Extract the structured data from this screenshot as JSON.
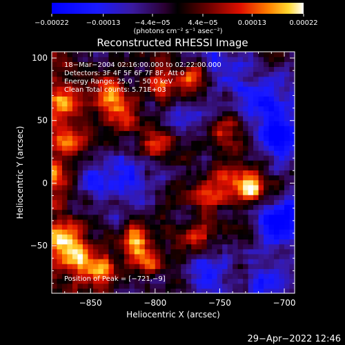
{
  "chart_data": {
    "type": "heatmap",
    "title": "Reconstructed RHESSI Image",
    "xlabel": "Heliocentric X (arcsec)",
    "ylabel": "Heliocentric Y (arcsec)",
    "xlim": [
      -880,
      -692
    ],
    "ylim": [
      -88,
      105
    ],
    "xticks": [
      -850,
      -800,
      -750,
      -700
    ],
    "yticks": [
      -50,
      0,
      50,
      100
    ],
    "xtick_labels": [
      "−850",
      "−800",
      "−750",
      "−700"
    ],
    "ytick_labels": [
      "−50",
      "0",
      "50",
      "100"
    ],
    "colorbar": {
      "range": [
        -0.00022,
        0.00022
      ],
      "ticks": [
        -0.00022,
        -0.00013,
        -4.4e-05,
        4.4e-05,
        0.00013,
        0.00022
      ],
      "tick_labels": [
        "−0.00022",
        "−0.00013",
        "−4.4e−05",
        "4.4e−05",
        "0.00013",
        "0.00022"
      ],
      "units": "(photons cm⁻² s⁻¹ asec⁻²)"
    },
    "info_lines": [
      "18−Mar−2004 02:16:00.000 to 02:22:00.000",
      "Detectors: 3F 4F 5F 6F 7F 8F, Att 0",
      "Energy Range: 25.0 − 50.0 keV",
      "Clean     Total counts: 5.71E+03"
    ],
    "peak_label": "Position of Peak = [−721,−9]",
    "peak": [
      -721,
      -9
    ],
    "bright_regions": [
      {
        "x": -872,
        "y": 68,
        "strength": 0.9
      },
      {
        "x": -870,
        "y": -45,
        "strength": 1.0
      },
      {
        "x": -860,
        "y": -60,
        "strength": 0.95
      },
      {
        "x": -840,
        "y": -70,
        "strength": 0.85
      },
      {
        "x": -835,
        "y": 75,
        "strength": 0.9
      },
      {
        "x": -828,
        "y": 55,
        "strength": 0.8
      },
      {
        "x": -800,
        "y": 35,
        "strength": 0.85
      },
      {
        "x": -795,
        "y": 80,
        "strength": 0.9
      },
      {
        "x": -772,
        "y": 85,
        "strength": 0.9
      },
      {
        "x": -760,
        "y": -10,
        "strength": 0.95
      },
      {
        "x": -745,
        "y": 45,
        "strength": 0.75
      },
      {
        "x": -725,
        "y": -5,
        "strength": 1.0
      },
      {
        "x": -738,
        "y": 5,
        "strength": 0.85
      },
      {
        "x": -815,
        "y": -45,
        "strength": 0.8
      },
      {
        "x": -770,
        "y": -45,
        "strength": 0.7
      },
      {
        "x": -805,
        "y": -60,
        "strength": 0.6
      },
      {
        "x": -880,
        "y": 10,
        "strength": 0.75
      },
      {
        "x": -865,
        "y": 35,
        "strength": 0.7
      }
    ],
    "dim_regions": [
      {
        "x": -705,
        "y": 40,
        "strength": 0.9
      },
      {
        "x": -705,
        "y": -30,
        "strength": 0.9
      },
      {
        "x": -720,
        "y": 70,
        "strength": 0.7
      },
      {
        "x": -745,
        "y": 95,
        "strength": 0.6
      },
      {
        "x": -775,
        "y": 60,
        "strength": 0.5
      },
      {
        "x": -845,
        "y": 0,
        "strength": 0.5
      },
      {
        "x": -820,
        "y": 5,
        "strength": 0.6
      },
      {
        "x": -760,
        "y": -75,
        "strength": 0.6
      },
      {
        "x": -715,
        "y": -80,
        "strength": 0.7
      }
    ]
  },
  "footer": {
    "date": "29−Apr−2022 12:46"
  }
}
